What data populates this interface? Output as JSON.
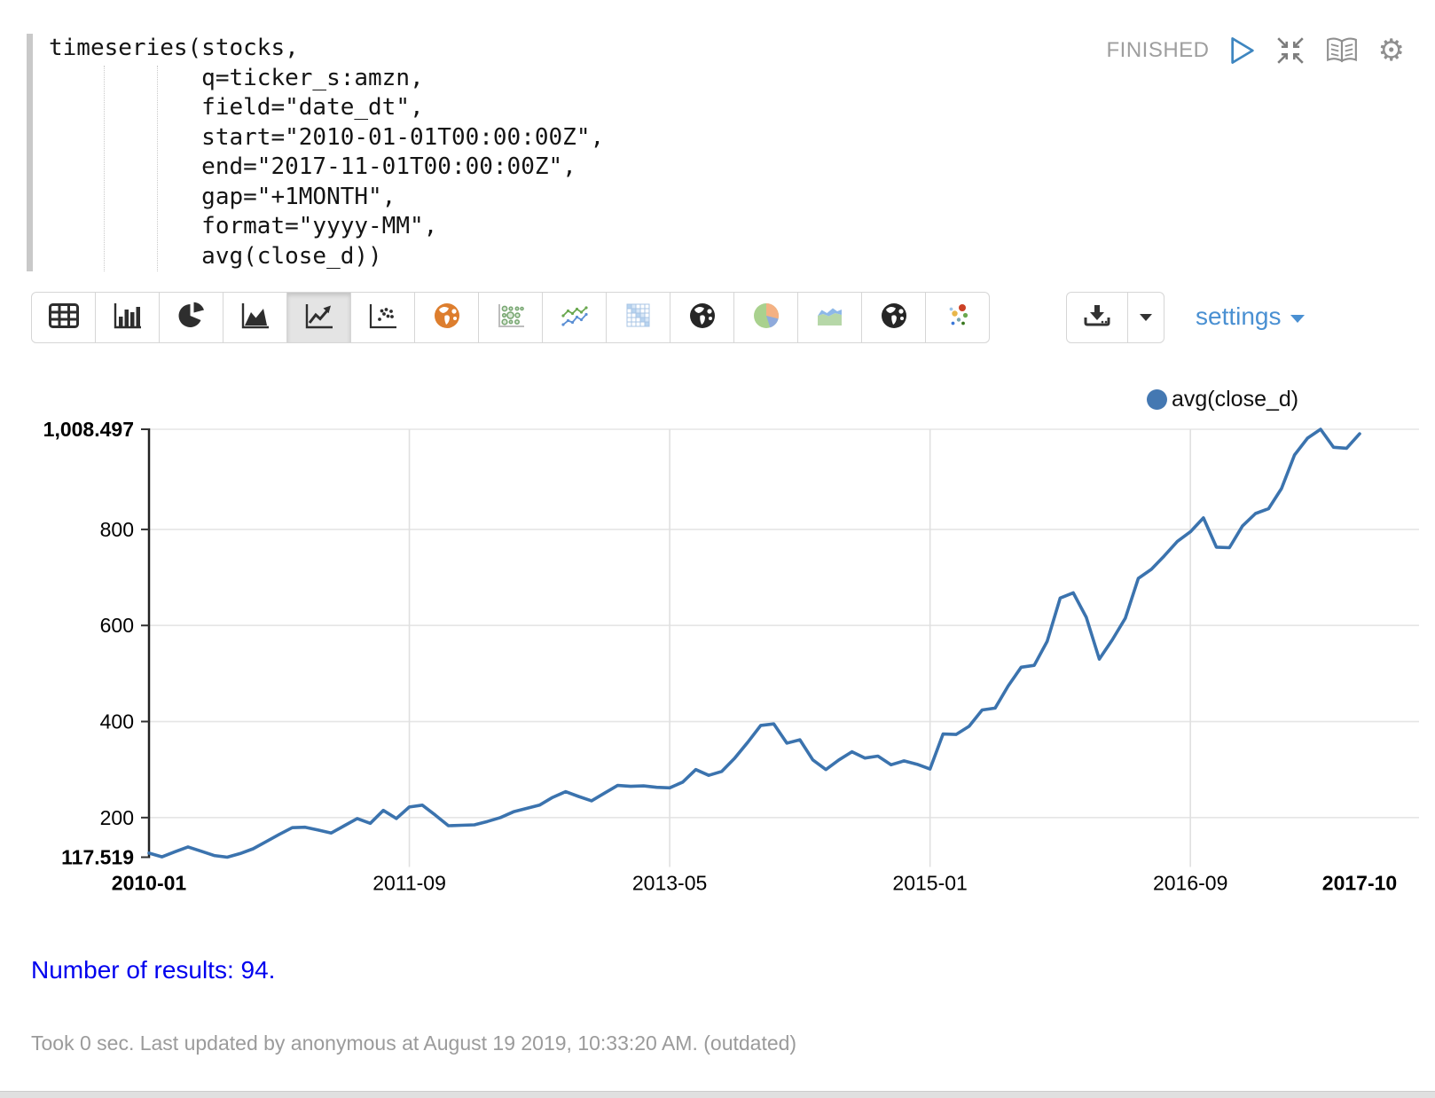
{
  "editor": {
    "code_lines": [
      "timeseries(stocks,",
      "           q=ticker_s:amzn,",
      "           field=\"date_dt\",",
      "           start=\"2010-01-01T00:00:00Z\",",
      "           end=\"2017-11-01T00:00:00Z\",",
      "           gap=\"+1MONTH\",",
      "           format=\"yyyy-MM\",",
      "           avg(close_d))"
    ]
  },
  "status": {
    "state": "FINISHED"
  },
  "toolbar": {
    "buttons": [
      "table",
      "bar-chart",
      "pie-chart",
      "area-chart",
      "line-chart",
      "scatter-plot",
      "world-map-orange",
      "bubble-chart",
      "multi-line-chart",
      "heatmap",
      "globe-dark",
      "pie-chart-colored",
      "area-chart-colored",
      "globe-dark-2",
      "scatter-colored"
    ],
    "selected": "line-chart"
  },
  "controls": {
    "settings_label": "settings"
  },
  "legend": {
    "label": "avg(close_d)",
    "dot_color": "#4478b2"
  },
  "chart_data": {
    "type": "line",
    "title": "",
    "x_start": "2010-01",
    "x_end": "2017-10",
    "x_interval": "+1MONTH",
    "series": [
      {
        "name": "avg(close_d)",
        "color": "#3b73ae",
        "values": [
          126,
          118.3,
          129,
          139,
          130,
          121,
          117.519,
          125,
          135,
          150,
          165,
          179,
          180,
          174,
          168,
          183,
          198,
          188,
          215,
          198,
          222,
          226,
          205,
          183,
          184,
          185,
          192,
          200,
          212,
          219,
          226,
          242,
          254,
          244,
          235,
          251,
          267,
          265,
          266,
          263,
          262,
          274,
          300,
          288,
          296,
          324,
          357,
          392,
          395,
          355,
          362,
          320,
          300,
          320,
          337,
          324,
          328,
          310,
          318,
          311,
          301,
          374,
          373,
          390,
          424,
          428,
          474,
          513,
          517,
          567,
          657,
          668,
          617,
          530,
          570,
          615,
          698,
          717,
          745,
          775,
          795,
          824,
          763,
          762,
          807,
          833,
          843,
          885,
          955,
          990,
          1008.497,
          971,
          969,
          999
        ]
      }
    ],
    "x_tick_labels": [
      {
        "label": "2010-01",
        "month_index": 0,
        "bold": true
      },
      {
        "label": "2011-09",
        "month_index": 20,
        "bold": false
      },
      {
        "label": "2013-05",
        "month_index": 40,
        "bold": false
      },
      {
        "label": "2015-01",
        "month_index": 60,
        "bold": false
      },
      {
        "label": "2016-09",
        "month_index": 80,
        "bold": false
      },
      {
        "label": "2017-10",
        "month_index": 93,
        "bold": true
      }
    ],
    "y_ticks": [
      {
        "label": "1,008.497",
        "value": 1008.497,
        "bold": true
      },
      {
        "label": "800",
        "value": 800,
        "bold": false
      },
      {
        "label": "600",
        "value": 600,
        "bold": false
      },
      {
        "label": "400",
        "value": 400,
        "bold": false
      },
      {
        "label": "200",
        "value": 200,
        "bold": false
      },
      {
        "label": "117.519",
        "value": 117.519,
        "bold": true
      }
    ],
    "ylim": [
      117.519,
      1008.497
    ],
    "grid": true,
    "legend_position": "top-right"
  },
  "results": {
    "text": "Number of results: 94."
  },
  "footer": {
    "text": "Took 0 sec. Last updated by anonymous at August 19 2019, 10:33:20 AM. (outdated)"
  }
}
